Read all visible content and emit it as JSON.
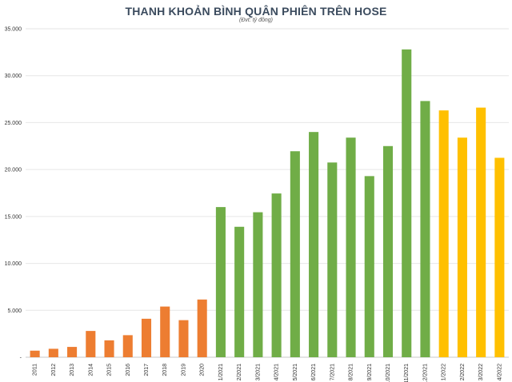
{
  "chart_data": {
    "type": "bar",
    "title": "THANH KHOẢN BÌNH QUÂN PHIÊN TRÊN HOSE",
    "subtitle": "(Đvt: tỷ đồng)",
    "xlabel": "",
    "ylabel": "",
    "ylim": [
      0,
      35000
    ],
    "yticks": [
      "-",
      "5.000",
      "10.000",
      "15.000",
      "20.000",
      "25.000",
      "30.000",
      "35.000"
    ],
    "grid": true,
    "legend": "none",
    "categories": [
      "2011",
      "2012",
      "2013",
      "2014",
      "2015",
      "2016",
      "2017",
      "2018",
      "2019",
      "2020",
      "1/2021",
      "2/2021",
      "3/2021",
      "4/2021",
      "5/2021",
      "6/2021",
      "7/2021",
      "8/2021",
      "9/2021",
      "10/2021",
      "11/2021",
      "12/2021",
      "1/2022",
      "2/2022",
      "3/2022",
      "4/2022"
    ],
    "values": [
      700,
      900,
      1100,
      2800,
      1800,
      2350,
      4100,
      5400,
      3950,
      6150,
      16000,
      13900,
      15450,
      17450,
      21950,
      24000,
      20750,
      23400,
      19300,
      22500,
      32800,
      27300,
      26300,
      23400,
      26600,
      21250
    ],
    "colors": [
      "#ed7d31",
      "#ed7d31",
      "#ed7d31",
      "#ed7d31",
      "#ed7d31",
      "#ed7d31",
      "#ed7d31",
      "#ed7d31",
      "#ed7d31",
      "#ed7d31",
      "#70ad47",
      "#70ad47",
      "#70ad47",
      "#70ad47",
      "#70ad47",
      "#70ad47",
      "#70ad47",
      "#70ad47",
      "#70ad47",
      "#70ad47",
      "#70ad47",
      "#70ad47",
      "#ffc000",
      "#ffc000",
      "#ffc000",
      "#ffc000"
    ]
  }
}
